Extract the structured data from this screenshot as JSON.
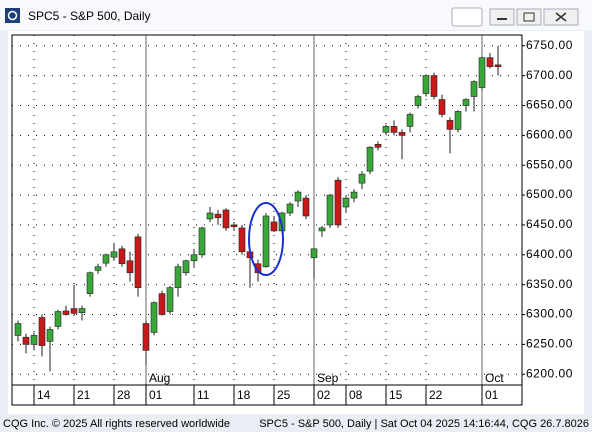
{
  "window_title": "SPC5 - S&P 500, Daily",
  "footer": {
    "left": "CQG Inc. © 2025 All rights reserved worldwide",
    "right": "SPC5 - S&P 500, Daily | Sat Oct 04 2025 14:16:44, CQG 26.7.8026"
  },
  "chart_data": {
    "type": "candlestick",
    "categories": [
      "07-10",
      "07-11",
      "07-14",
      "07-15",
      "07-16",
      "07-17",
      "07-18",
      "07-21",
      "07-22",
      "07-23",
      "07-24",
      "07-25",
      "07-28",
      "07-29",
      "07-30",
      "07-31",
      "08-01",
      "08-04",
      "08-05",
      "08-06",
      "08-07",
      "08-08",
      "08-11",
      "08-12",
      "08-13",
      "08-14",
      "08-15",
      "08-18",
      "08-19",
      "08-20",
      "08-21",
      "08-22",
      "08-25",
      "08-26",
      "08-27",
      "08-28",
      "08-29",
      "09-02",
      "09-03",
      "09-04",
      "09-05",
      "09-08",
      "09-09",
      "09-10",
      "09-11",
      "09-12",
      "09-15",
      "09-16",
      "09-17",
      "09-18",
      "09-19",
      "09-22",
      "09-23",
      "09-24",
      "09-25",
      "09-26",
      "09-29",
      "09-30",
      "10-01",
      "10-02",
      "10-03"
    ],
    "open": [
      6265,
      6262,
      6250,
      6295,
      6255,
      6280,
      6306,
      6310,
      6303,
      6335,
      6374,
      6386,
      6396,
      6410,
      6390,
      6430,
      6285,
      6270,
      6335,
      6305,
      6345,
      6370,
      6390,
      6400,
      6460,
      6468,
      6475,
      6450,
      6445,
      6405,
      6385,
      6380,
      6455,
      6440,
      6470,
      6490,
      6495,
      6395,
      6440,
      6450,
      6525,
      6480,
      6495,
      6520,
      6540,
      6585,
      6605,
      6615,
      6605,
      6615,
      6650,
      6670,
      6700,
      6660,
      6625,
      6610,
      6650,
      6665,
      6680,
      6730,
      6718
    ],
    "high": [
      6290,
      6268,
      6270,
      6300,
      6280,
      6308,
      6315,
      6350,
      6315,
      6372,
      6385,
      6402,
      6420,
      6415,
      6405,
      6435,
      6290,
      6322,
      6340,
      6348,
      6385,
      6392,
      6410,
      6447,
      6480,
      6475,
      6478,
      6455,
      6450,
      6410,
      6392,
      6470,
      6465,
      6472,
      6488,
      6508,
      6500,
      6412,
      6448,
      6502,
      6530,
      6498,
      6510,
      6540,
      6582,
      6590,
      6618,
      6625,
      6610,
      6638,
      6668,
      6702,
      6705,
      6668,
      6630,
      6642,
      6662,
      6692,
      6732,
      6738,
      6750
    ],
    "low": [
      6255,
      6235,
      6240,
      6230,
      6205,
      6275,
      6298,
      6298,
      6290,
      6330,
      6368,
      6380,
      6390,
      6380,
      6355,
      6330,
      6215,
      6265,
      6298,
      6300,
      6330,
      6365,
      6380,
      6395,
      6455,
      6450,
      6440,
      6440,
      6400,
      6345,
      6355,
      6378,
      6438,
      6436,
      6465,
      6480,
      6460,
      6360,
      6430,
      6445,
      6445,
      6470,
      6488,
      6510,
      6535,
      6575,
      6600,
      6600,
      6560,
      6605,
      6645,
      6665,
      6660,
      6630,
      6570,
      6605,
      6640,
      6640,
      6675,
      6712,
      6700
    ],
    "close": [
      6285,
      6250,
      6265,
      6248,
      6275,
      6305,
      6300,
      6302,
      6310,
      6370,
      6380,
      6400,
      6405,
      6385,
      6370,
      6345,
      6240,
      6320,
      6300,
      6345,
      6380,
      6390,
      6400,
      6445,
      6470,
      6462,
      6445,
      6447,
      6405,
      6395,
      6370,
      6465,
      6440,
      6470,
      6485,
      6505,
      6465,
      6410,
      6445,
      6500,
      6450,
      6495,
      6505,
      6535,
      6580,
      6580,
      6615,
      6605,
      6600,
      6635,
      6665,
      6700,
      6665,
      6635,
      6610,
      6640,
      6660,
      6690,
      6730,
      6715,
      6715
    ],
    "up_color": "#3aa63a",
    "down_color": "#c41a1a",
    "ylim": [
      6182,
      6768
    ],
    "yticks": [
      {
        "value": 6200,
        "label": "6200.00"
      },
      {
        "value": 6250,
        "label": "6250.00"
      },
      {
        "value": 6300,
        "label": "6300.00"
      },
      {
        "value": 6350,
        "label": "6350.00"
      },
      {
        "value": 6400,
        "label": "6400.00"
      },
      {
        "value": 6450,
        "label": "6450.00"
      },
      {
        "value": 6500,
        "label": "6500.00"
      },
      {
        "value": 6550,
        "label": "6550.00"
      },
      {
        "value": 6600,
        "label": "6600.00"
      },
      {
        "value": 6650,
        "label": "6650.00"
      },
      {
        "value": 6700,
        "label": "6700.00"
      },
      {
        "value": 6750,
        "label": "6750.00"
      }
    ],
    "xticks": [
      {
        "value": "07-14",
        "label": "14"
      },
      {
        "value": "07-21",
        "label": "21"
      },
      {
        "value": "07-28",
        "label": "28"
      },
      {
        "value": "08-01",
        "label": "01"
      },
      {
        "value": "08-11",
        "label": "11"
      },
      {
        "value": "08-18",
        "label": "18"
      },
      {
        "value": "08-25",
        "label": "25"
      },
      {
        "value": "09-02",
        "label": "02"
      },
      {
        "value": "09-08",
        "label": "08"
      },
      {
        "value": "09-15",
        "label": "15"
      },
      {
        "value": "09-22",
        "label": "22"
      },
      {
        "value": "10-01",
        "label": "01"
      }
    ],
    "month_ticks": [
      {
        "value": "08-01",
        "label": "Aug"
      },
      {
        "value": "09-02",
        "label": "Sep"
      },
      {
        "value": "10-01",
        "label": "Oct"
      }
    ],
    "grid": true
  }
}
